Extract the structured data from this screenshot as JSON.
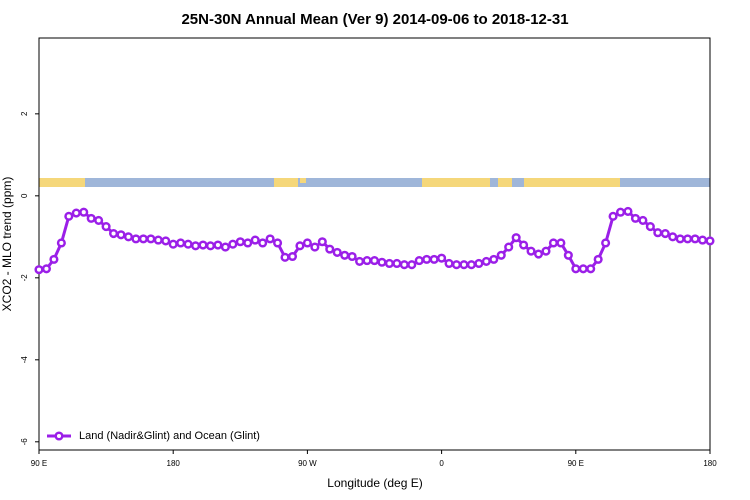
{
  "chart_data": {
    "type": "line",
    "title": "25N-30N Annual Mean (Ver 9)   2014-09-06 to 2018-12-31",
    "x_label": "Longitude (deg E)",
    "y_label": "XCO2 - MLO trend (ppm)",
    "xlim": [
      90,
      540
    ],
    "ylim": [
      -6.2,
      3.85
    ],
    "xticks": [
      {
        "value": 90,
        "label": "90 E"
      },
      180,
      {
        "value": 270,
        "label": "90 W"
      },
      {
        "value": 360,
        "label": "0"
      },
      {
        "value": 450,
        "label": "90 E"
      },
      {
        "value": 540,
        "label": "180"
      }
    ],
    "yticks": [
      -6,
      -4,
      -2,
      0,
      2
    ],
    "legend": "bottom-left",
    "x": [
      90,
      95,
      100,
      105,
      110,
      115,
      120,
      125,
      130,
      135,
      140,
      145,
      150,
      155,
      160,
      165,
      170,
      175,
      180,
      185,
      190,
      195,
      200,
      205,
      210,
      215,
      220,
      225,
      230,
      235,
      240,
      245,
      250,
      255,
      260,
      265,
      270,
      275,
      280,
      285,
      290,
      295,
      300,
      305,
      310,
      315,
      320,
      325,
      330,
      335,
      340,
      345,
      350,
      355,
      360,
      365,
      370,
      375,
      380,
      385,
      390,
      395,
      400,
      405,
      410,
      415,
      420,
      425,
      430,
      435,
      440,
      445,
      450,
      455,
      460,
      465,
      470,
      475,
      480,
      485,
      490,
      495,
      500,
      505,
      510,
      515,
      520,
      525,
      530,
      535,
      540
    ],
    "series": [
      {
        "name": "Land (Nadir&Glint) and Ocean (Glint)",
        "color": "#9b1fe8",
        "values": [
          -1.8,
          -1.78,
          -1.55,
          -1.15,
          -0.5,
          -0.42,
          -0.4,
          -0.55,
          -0.6,
          -0.75,
          -0.92,
          -0.95,
          -1.0,
          -1.05,
          -1.05,
          -1.05,
          -1.08,
          -1.1,
          -1.18,
          -1.15,
          -1.18,
          -1.22,
          -1.2,
          -1.22,
          -1.2,
          -1.25,
          -1.18,
          -1.12,
          -1.15,
          -1.08,
          -1.15,
          -1.05,
          -1.15,
          -1.5,
          -1.48,
          -1.22,
          -1.15,
          -1.25,
          -1.12,
          -1.3,
          -1.38,
          -1.45,
          -1.48,
          -1.6,
          -1.58,
          -1.58,
          -1.62,
          -1.65,
          -1.65,
          -1.68,
          -1.68,
          -1.58,
          -1.55,
          -1.55,
          -1.52,
          -1.65,
          -1.68,
          -1.68,
          -1.68,
          -1.65,
          -1.6,
          -1.55,
          -1.45,
          -1.25,
          -1.02,
          -1.2,
          -1.35,
          -1.42,
          -1.35,
          -1.15,
          -1.15,
          -1.45,
          -1.78,
          -1.78,
          -1.78,
          -1.55,
          -1.15,
          -0.5,
          -0.4,
          -0.38,
          -0.55,
          -0.6,
          -0.75,
          -0.9,
          -0.92,
          -1.0,
          -1.05,
          -1.05,
          -1.05,
          -1.08,
          -1.1
        ]
      }
    ]
  }
}
